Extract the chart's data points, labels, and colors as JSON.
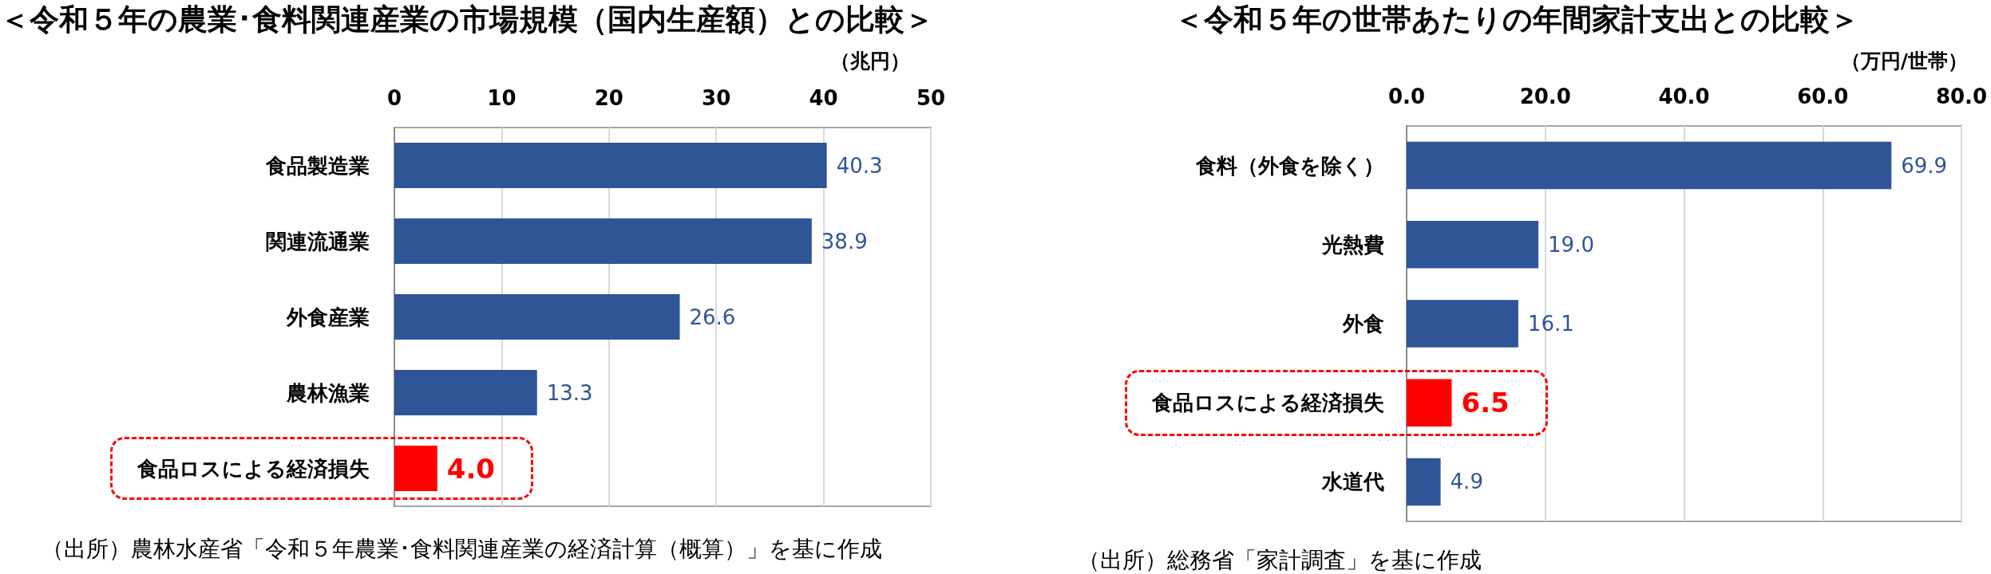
{
  "chart_data": [
    {
      "type": "bar",
      "orientation": "horizontal",
      "title": "＜令和５年の農業･食料関連産業の市場規模（国内生産額）との比較＞",
      "xlabel": "（兆円）",
      "categories": [
        "食品製造業",
        "関連流通業",
        "外食産業",
        "農林漁業",
        "食品ロスによる経済損失"
      ],
      "values": [
        40.3,
        38.9,
        26.6,
        13.3,
        4.0
      ],
      "colors": [
        "#2f5597",
        "#2f5597",
        "#2f5597",
        "#2f5597",
        "#ff0000"
      ],
      "value_labels": [
        "40.3",
        "38.9",
        "26.6",
        "13.3",
        "4.0"
      ],
      "xlim": [
        0,
        50
      ],
      "xticks": [
        0,
        10,
        20,
        30,
        40,
        50
      ],
      "grid": "x",
      "annotations": [
        "（出所）農林水産省「令和５年農業･食料関連産業の経済計算（概算）」を基に作成"
      ]
    },
    {
      "type": "bar",
      "orientation": "horizontal",
      "title": "＜令和５年の世帯あたりの年間家計支出との比較＞",
      "xlabel": "（万円/世帯）",
      "categories": [
        "食料（外食を除く）",
        "光熱費",
        "外食",
        "食品ロスによる経済損失",
        "水道代"
      ],
      "values": [
        69.9,
        19.0,
        16.1,
        6.5,
        4.9
      ],
      "colors": [
        "#2f5597",
        "#2f5597",
        "#2f5597",
        "#ff0000",
        "#2f5597"
      ],
      "value_labels": [
        "69.9",
        "19.0",
        "16.1",
        "6.5",
        "4.9"
      ],
      "xlim": [
        0,
        80
      ],
      "xticks": [
        {
          "value": 0,
          "label": "0.0"
        },
        {
          "value": 20,
          "label": "20.0"
        },
        {
          "value": 40,
          "label": "40.0"
        },
        {
          "value": 60,
          "label": "60.0"
        },
        {
          "value": 80,
          "label": "80.0"
        }
      ],
      "grid": "x",
      "annotations": [
        "（出所）総務省「家計調査」を基に作成"
      ]
    }
  ]
}
